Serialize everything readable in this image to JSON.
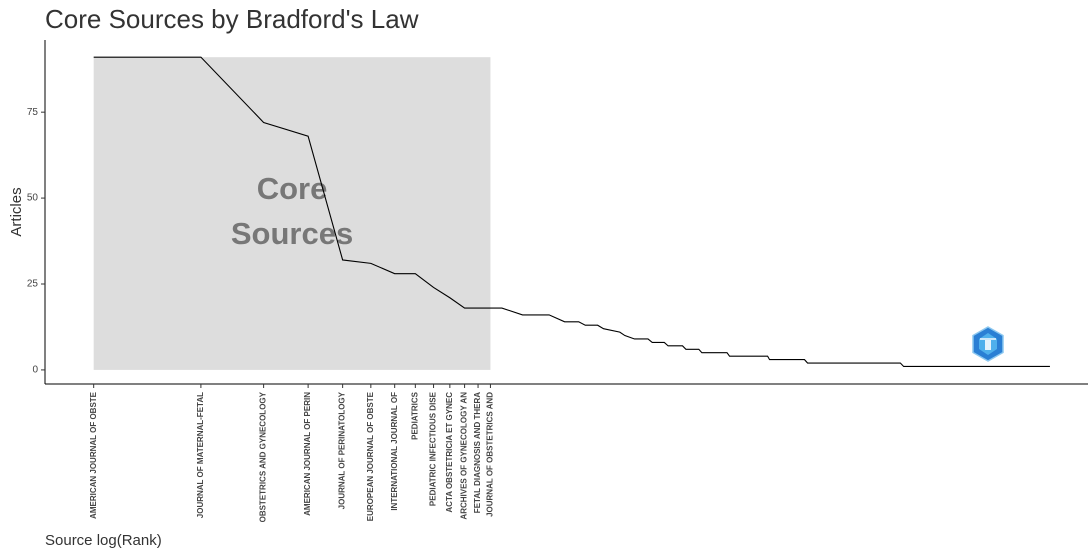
{
  "chart_data": {
    "type": "line",
    "title": "Core Sources by Bradford's Law",
    "x_label": "Source log(Rank)",
    "y_label": "Articles",
    "annotation": [
      "Core",
      "Sources"
    ],
    "log_x": true,
    "x": [
      1,
      2,
      3,
      4,
      5,
      6,
      7,
      8,
      9,
      10,
      11,
      12,
      13,
      14,
      16,
      19,
      21,
      23,
      24,
      26,
      27,
      30,
      31,
      33,
      36,
      37,
      40,
      41,
      45,
      46,
      50,
      51,
      60,
      61,
      78,
      79,
      99,
      101,
      184,
      188,
      484
    ],
    "series": [
      {
        "name": "Articles",
        "color": "#000000",
        "values": [
          91,
          91,
          72,
          68,
          32,
          31,
          28,
          28,
          24,
          21,
          18,
          18,
          18,
          18,
          16,
          16,
          14,
          14,
          13,
          13,
          12,
          11,
          10,
          9,
          9,
          8,
          8,
          7,
          7,
          6,
          6,
          5,
          5,
          4,
          4,
          3,
          3,
          2,
          2,
          1,
          1
        ]
      }
    ],
    "core_color": "#dddddd",
    "xlim": [
      0.73,
      619
    ],
    "ylim": [
      -4.1,
      96
    ],
    "yticks": [
      0,
      25,
      50,
      75
    ],
    "xticks": [
      {
        "value": 1,
        "label": "AMERICAN JOURNAL OF OBSTE"
      },
      {
        "value": 2,
        "label": "JOURNAL OF MATERNAL-FETAL"
      },
      {
        "value": 3,
        "label": "OBSTETRICS AND GYNECOLOGY"
      },
      {
        "value": 4,
        "label": "AMERICAN JOURNAL OF PERIN"
      },
      {
        "value": 5,
        "label": "JOURNAL OF PERINATOLOGY"
      },
      {
        "value": 6,
        "label": "EUROPEAN JOURNAL OF OBSTE"
      },
      {
        "value": 7,
        "label": "INTERNATIONAL JOURNAL OF"
      },
      {
        "value": 8,
        "label": "PEDIATRICS"
      },
      {
        "value": 9,
        "label": "PEDIATRIC INFECTIOUS DISE"
      },
      {
        "value": 10,
        "label": "ACTA OBSTETRICIA ET GYNEC"
      },
      {
        "value": 11,
        "label": "ARCHIVES OF GYNECOLOGY AN"
      },
      {
        "value": 12,
        "label": "FETAL DIAGNOSIS AND THERA"
      },
      {
        "value": 13,
        "label": "JOURNAL OF OBSTETRICS AND"
      }
    ],
    "grid": false
  }
}
